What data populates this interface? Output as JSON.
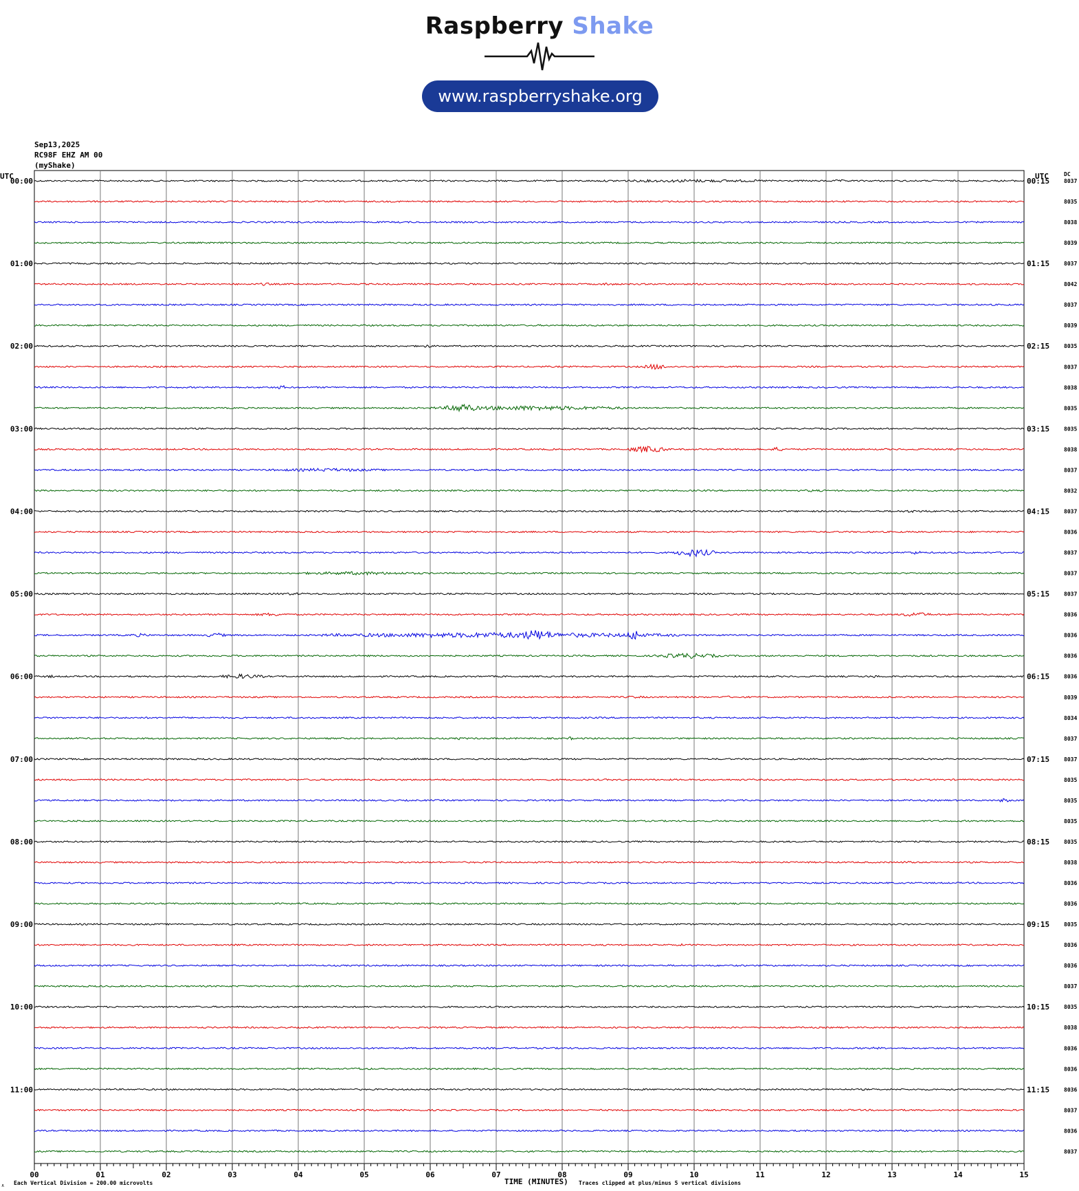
{
  "header": {
    "brand_part1": "Raspberry",
    "brand_part2": "Shake",
    "url": "www.raspberryshake.org",
    "brand_color_dark": "#111111",
    "brand_color_light": "#7d9af0",
    "pill_color": "#1a3a96"
  },
  "meta": {
    "date": "Sep13,2025",
    "station": "RC98F EHZ AM 00",
    "source": "(myShake)"
  },
  "labels": {
    "utc_left": "UTC",
    "utc_right": "UTC",
    "dc_header": "DC",
    "footer_left": "Each Vertical Division =  200.00 microvolts",
    "footer_right": "Traces clipped at plus/minus 5 vertical divisions",
    "corner": "∧"
  },
  "chart_data": {
    "type": "line",
    "xlabel": "TIME (MINUTES)",
    "xlim": [
      0,
      15
    ],
    "x_ticks": [
      "00",
      "01",
      "02",
      "03",
      "04",
      "05",
      "06",
      "07",
      "08",
      "09",
      "10",
      "11",
      "12",
      "13",
      "14",
      "15"
    ],
    "trace_colors": [
      "#000000",
      "#e00000",
      "#0000e0",
      "#006400"
    ],
    "hour_labels_left": [
      "00:00",
      "01:00",
      "02:00",
      "03:00",
      "04:00",
      "05:00",
      "06:00",
      "07:00",
      "08:00",
      "09:00",
      "10:00",
      "11:00"
    ],
    "hour_labels_right": [
      "00:15",
      "01:15",
      "02:15",
      "03:15",
      "04:15",
      "05:15",
      "06:15",
      "07:15",
      "08:15",
      "09:15",
      "10:15",
      "11:15"
    ],
    "dc_offsets": [
      "8037",
      "8035",
      "8038",
      "8039",
      "8037",
      "8042",
      "8037",
      "8039",
      "8035",
      "8037",
      "8038",
      "8035",
      "8035",
      "8038",
      "8037",
      "8032",
      "8037",
      "8036",
      "8037",
      "8037",
      "8037",
      "8036",
      "8036",
      "8036",
      "8036",
      "8039",
      "8034",
      "8037",
      "8037",
      "8035",
      "8035",
      "8035",
      "8035",
      "8038",
      "8036",
      "8036",
      "8035",
      "8036",
      "8036",
      "8037",
      "8035",
      "8038",
      "8036",
      "8036",
      "8036",
      "8037",
      "8036",
      "8037"
    ],
    "events": [
      {
        "trace": 0,
        "start": 8.3,
        "end": 11.6,
        "amp": 2.2
      },
      {
        "trace": 0,
        "start": 12.1,
        "end": 12.3,
        "amp": 2.0
      },
      {
        "trace": 5,
        "start": 3.4,
        "end": 3.6,
        "amp": 2.5
      },
      {
        "trace": 5,
        "start": 8.6,
        "end": 8.8,
        "amp": 2.5
      },
      {
        "trace": 8,
        "start": 5.85,
        "end": 6.05,
        "amp": 2.5
      },
      {
        "trace": 9,
        "start": 9.25,
        "end": 9.6,
        "amp": 4.5
      },
      {
        "trace": 10,
        "start": 3.65,
        "end": 3.85,
        "amp": 3.0
      },
      {
        "trace": 11,
        "start": 6.0,
        "end": 9.0,
        "amp": 3.5
      },
      {
        "trace": 11,
        "start": 6.25,
        "end": 6.7,
        "amp": 7.0
      },
      {
        "trace": 13,
        "start": 9.0,
        "end": 9.6,
        "amp": 5.0
      },
      {
        "trace": 13,
        "start": 11.1,
        "end": 11.4,
        "amp": 3.0
      },
      {
        "trace": 14,
        "start": 3.5,
        "end": 5.4,
        "amp": 2.5
      },
      {
        "trace": 15,
        "start": 11.5,
        "end": 12.1,
        "amp": 1.8
      },
      {
        "trace": 16,
        "start": 12.8,
        "end": 13.8,
        "amp": 1.8
      },
      {
        "trace": 18,
        "start": 9.7,
        "end": 10.3,
        "amp": 6.0
      },
      {
        "trace": 18,
        "start": 13.2,
        "end": 13.5,
        "amp": 2.5
      },
      {
        "trace": 19,
        "start": 3.8,
        "end": 6.0,
        "amp": 2.5
      },
      {
        "trace": 20,
        "start": 3.5,
        "end": 4.3,
        "amp": 1.8
      },
      {
        "trace": 21,
        "start": 3.3,
        "end": 3.9,
        "amp": 2.5
      },
      {
        "trace": 21,
        "start": 13.1,
        "end": 13.6,
        "amp": 3.5
      },
      {
        "trace": 22,
        "start": 1.4,
        "end": 1.8,
        "amp": 2.5
      },
      {
        "trace": 22,
        "start": 2.6,
        "end": 2.9,
        "amp": 3.5
      },
      {
        "trace": 22,
        "start": 4.3,
        "end": 9.8,
        "amp": 4.0
      },
      {
        "trace": 22,
        "start": 7.3,
        "end": 7.9,
        "amp": 8.0
      },
      {
        "trace": 22,
        "start": 9.0,
        "end": 9.2,
        "amp": 9.0
      },
      {
        "trace": 23,
        "start": 9.4,
        "end": 10.4,
        "amp": 4.0
      },
      {
        "trace": 24,
        "start": 0.1,
        "end": 0.4,
        "amp": 2.0
      },
      {
        "trace": 24,
        "start": 2.8,
        "end": 3.5,
        "amp": 3.5
      },
      {
        "trace": 24,
        "start": 12.5,
        "end": 13.0,
        "amp": 1.8
      },
      {
        "trace": 25,
        "start": 8.9,
        "end": 9.3,
        "amp": 2.0
      },
      {
        "trace": 25,
        "start": 10.4,
        "end": 10.6,
        "amp": 2.0
      },
      {
        "trace": 27,
        "start": 6.4,
        "end": 6.5,
        "amp": 2.5
      },
      {
        "trace": 27,
        "start": 8.1,
        "end": 8.15,
        "amp": 3.0
      },
      {
        "trace": 28,
        "start": 5.0,
        "end": 5.5,
        "amp": 2.0
      },
      {
        "trace": 30,
        "start": 14.6,
        "end": 14.8,
        "amp": 3.0
      },
      {
        "trace": 33,
        "start": 10.3,
        "end": 10.5,
        "amp": 1.5
      },
      {
        "trace": 33,
        "start": 13.1,
        "end": 13.4,
        "amp": 2.0
      },
      {
        "trace": 37,
        "start": 9.7,
        "end": 9.9,
        "amp": 1.8
      },
      {
        "trace": 42,
        "start": 12.6,
        "end": 12.9,
        "amp": 1.8
      },
      {
        "trace": 43,
        "start": 4.6,
        "end": 5.3,
        "amp": 1.8
      },
      {
        "trace": 44,
        "start": 10.0,
        "end": 10.2,
        "amp": 1.5
      }
    ]
  }
}
